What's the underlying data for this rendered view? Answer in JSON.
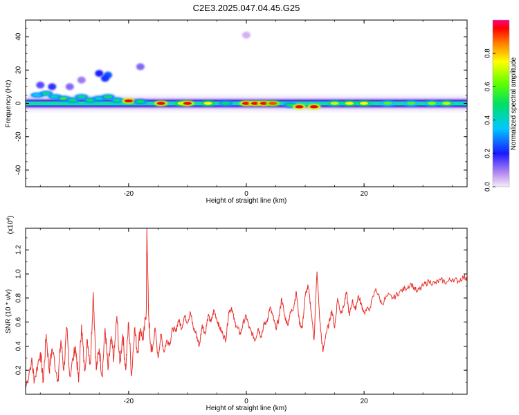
{
  "page_title": "C2E3.2025.047.04.45.G25",
  "chart_data": [
    {
      "type": "heatmap",
      "xlabel": "Height of straight line (km)",
      "ylabel": "Frequency (Hz)",
      "xlim": [
        -37.5,
        37.5
      ],
      "ylim": [
        -50,
        50
      ],
      "x_ticks": [
        -20,
        0,
        20
      ],
      "y_ticks": [
        -40,
        -20,
        0,
        20,
        40
      ],
      "colorbar": {
        "label": "Normalized spectral amplitude",
        "range": [
          0.0,
          1.0
        ],
        "ticks": [
          "0.0",
          "0.2",
          "0.4",
          "0.6",
          "0.8"
        ]
      },
      "band": {
        "center_hz": 0,
        "blobs": [
          {
            "x": -35.5,
            "y": 5,
            "v": 0.35
          },
          {
            "x": -34,
            "y": 6,
            "v": 0.45
          },
          {
            "x": -32.5,
            "y": 4,
            "v": 0.4
          },
          {
            "x": -31,
            "y": 3,
            "v": 0.55
          },
          {
            "x": -29.5,
            "y": 2,
            "v": 0.5
          },
          {
            "x": -28,
            "y": 4,
            "v": 0.45
          },
          {
            "x": -26.5,
            "y": 2,
            "v": 0.5
          },
          {
            "x": -25,
            "y": 3,
            "v": 0.4
          },
          {
            "x": -23.5,
            "y": 4,
            "v": 0.5
          },
          {
            "x": -22,
            "y": 2,
            "v": 0.45
          },
          {
            "x": -20,
            "y": 1.5,
            "v": 0.95
          },
          {
            "x": -18,
            "y": 1,
            "v": 0.5
          },
          {
            "x": -14.5,
            "y": 0,
            "v": 0.95
          },
          {
            "x": -11,
            "y": 0,
            "v": 0.75
          },
          {
            "x": -10,
            "y": 0,
            "v": 0.95
          },
          {
            "x": -6.5,
            "y": 0,
            "v": 0.75
          },
          {
            "x": -3.5,
            "y": 0,
            "v": 0.5
          },
          {
            "x": 0,
            "y": 0,
            "v": 0.95
          },
          {
            "x": 1.5,
            "y": 0,
            "v": 0.95
          },
          {
            "x": 3,
            "y": 0,
            "v": 0.95
          },
          {
            "x": 4.5,
            "y": 0,
            "v": 0.9
          },
          {
            "x": 7.5,
            "y": -1,
            "v": 0.5
          },
          {
            "x": 9,
            "y": -2,
            "v": 0.95
          },
          {
            "x": 11.5,
            "y": -2,
            "v": 0.95
          },
          {
            "x": 15,
            "y": 0,
            "v": 0.7
          },
          {
            "x": 17.5,
            "y": 0,
            "v": 0.75
          },
          {
            "x": 20,
            "y": 0,
            "v": 0.75
          },
          {
            "x": 24,
            "y": 0,
            "v": 0.6
          },
          {
            "x": 28,
            "y": 0,
            "v": 0.6
          },
          {
            "x": 31.5,
            "y": 0,
            "v": 0.65
          },
          {
            "x": 34,
            "y": 0,
            "v": 0.7
          }
        ],
        "faint": [
          {
            "x": -25,
            "y": 18,
            "v": 0.2
          },
          {
            "x": -23.5,
            "y": 17,
            "v": 0.25
          },
          {
            "x": -24,
            "y": 15,
            "v": 0.22
          },
          {
            "x": -18,
            "y": 22,
            "v": 0.12
          },
          {
            "x": -35,
            "y": 11,
            "v": 0.15
          },
          {
            "x": -33,
            "y": 10,
            "v": 0.18
          },
          {
            "x": -30,
            "y": 10,
            "v": 0.12
          },
          {
            "x": 0,
            "y": 41,
            "v": 0.05
          },
          {
            "x": -28,
            "y": 14,
            "v": 0.1
          }
        ]
      }
    },
    {
      "type": "line",
      "xlabel": "Height of straight line (km)",
      "ylabel": "SNR (10 * v/v)",
      "y_multiplier": "(x10",
      "y_multiplier_exp": "4",
      "xlim": [
        -37.5,
        37.5
      ],
      "ylim": [
        0.0,
        1.38
      ],
      "x_ticks": [
        -20,
        0,
        20
      ],
      "y_ticks": [
        0.2,
        0.4,
        0.6,
        0.8,
        1.0,
        1.2
      ],
      "series": [
        {
          "color": "#e8302c",
          "x": [
            -37.5,
            -36.5,
            -36,
            -35,
            -34.5,
            -34,
            -33.5,
            -33,
            -32,
            -31.5,
            -31,
            -30.5,
            -30,
            -29,
            -28.5,
            -28,
            -27.5,
            -27,
            -26.5,
            -26,
            -25.5,
            -25,
            -24.5,
            -24,
            -23.5,
            -23,
            -22.5,
            -22,
            -21.5,
            -21,
            -20.5,
            -20,
            -19.5,
            -19,
            -18.5,
            -18,
            -17.5,
            -17,
            -16.9,
            -16.6,
            -16.3,
            -16,
            -15.5,
            -15,
            -14.5,
            -14,
            -13.5,
            -13,
            -12.5,
            -12,
            -11.5,
            -11,
            -10.5,
            -10,
            -9.5,
            -9,
            -8.5,
            -8,
            -7.5,
            -7,
            -6.5,
            -6,
            -5.5,
            -5,
            -4.5,
            -4,
            -3.5,
            -3,
            -2.5,
            -2,
            -1.5,
            -1,
            -0.5,
            0,
            0.5,
            1,
            1.5,
            2,
            2.5,
            3,
            3.5,
            4,
            4.5,
            5,
            5.5,
            6,
            6.5,
            7,
            7.5,
            8,
            8.5,
            9,
            9.5,
            10,
            10.5,
            11,
            11.5,
            12,
            12.5,
            13,
            13.5,
            14,
            14.5,
            15,
            15.5,
            16,
            16.5,
            17,
            17.5,
            18,
            18.5,
            19,
            19.5,
            20,
            21,
            22,
            23,
            24,
            25,
            26,
            27,
            28,
            29,
            30,
            31,
            32,
            33,
            34,
            35,
            36,
            37,
            37.5
          ],
          "y": [
            0.05,
            0.28,
            0.12,
            0.35,
            0.1,
            0.5,
            0.2,
            0.38,
            0.12,
            0.45,
            0.2,
            0.55,
            0.15,
            0.4,
            0.1,
            0.58,
            0.2,
            0.45,
            0.25,
            0.85,
            0.2,
            0.38,
            0.15,
            0.55,
            0.2,
            0.45,
            0.3,
            0.65,
            0.25,
            0.5,
            0.2,
            0.6,
            0.15,
            0.55,
            0.35,
            0.55,
            0.45,
            0.7,
            1.38,
            0.65,
            0.42,
            0.35,
            0.55,
            0.3,
            0.5,
            0.35,
            0.45,
            0.42,
            0.55,
            0.52,
            0.62,
            0.55,
            0.65,
            0.6,
            0.68,
            0.55,
            0.5,
            0.4,
            0.58,
            0.5,
            0.65,
            0.6,
            0.7,
            0.62,
            0.55,
            0.5,
            0.45,
            0.68,
            0.72,
            0.6,
            0.55,
            0.5,
            0.6,
            0.65,
            0.55,
            0.5,
            0.45,
            0.55,
            0.48,
            0.58,
            0.6,
            0.72,
            0.65,
            0.55,
            0.62,
            0.8,
            0.65,
            0.58,
            0.68,
            0.72,
            0.85,
            0.6,
            0.55,
            0.82,
            0.9,
            0.7,
            0.45,
            1.02,
            0.6,
            0.35,
            0.5,
            0.58,
            0.7,
            0.55,
            0.8,
            0.68,
            0.72,
            0.85,
            0.65,
            0.78,
            0.7,
            0.82,
            0.75,
            0.68,
            0.72,
            0.88,
            0.75,
            0.82,
            0.8,
            0.85,
            0.88,
            0.92,
            0.85,
            0.9,
            0.94,
            0.92,
            0.95,
            0.93,
            0.96,
            0.94,
            0.98,
            0.96
          ]
        }
      ]
    }
  ]
}
